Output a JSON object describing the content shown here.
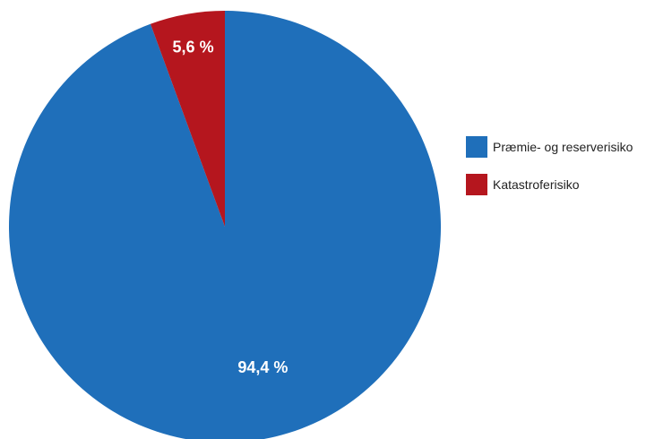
{
  "chart_data": {
    "type": "pie",
    "slices": [
      {
        "name": "Præmie- og reserverisiko",
        "value": 94.4,
        "label": "94,4 %",
        "color": "#1f6fba"
      },
      {
        "name": "Katastroferisiko",
        "value": 5.6,
        "label": "5,6 %",
        "color": "#b5161e"
      }
    ],
    "start_angle_deg": 0,
    "direction": "clockwise",
    "legend_position": "right"
  }
}
